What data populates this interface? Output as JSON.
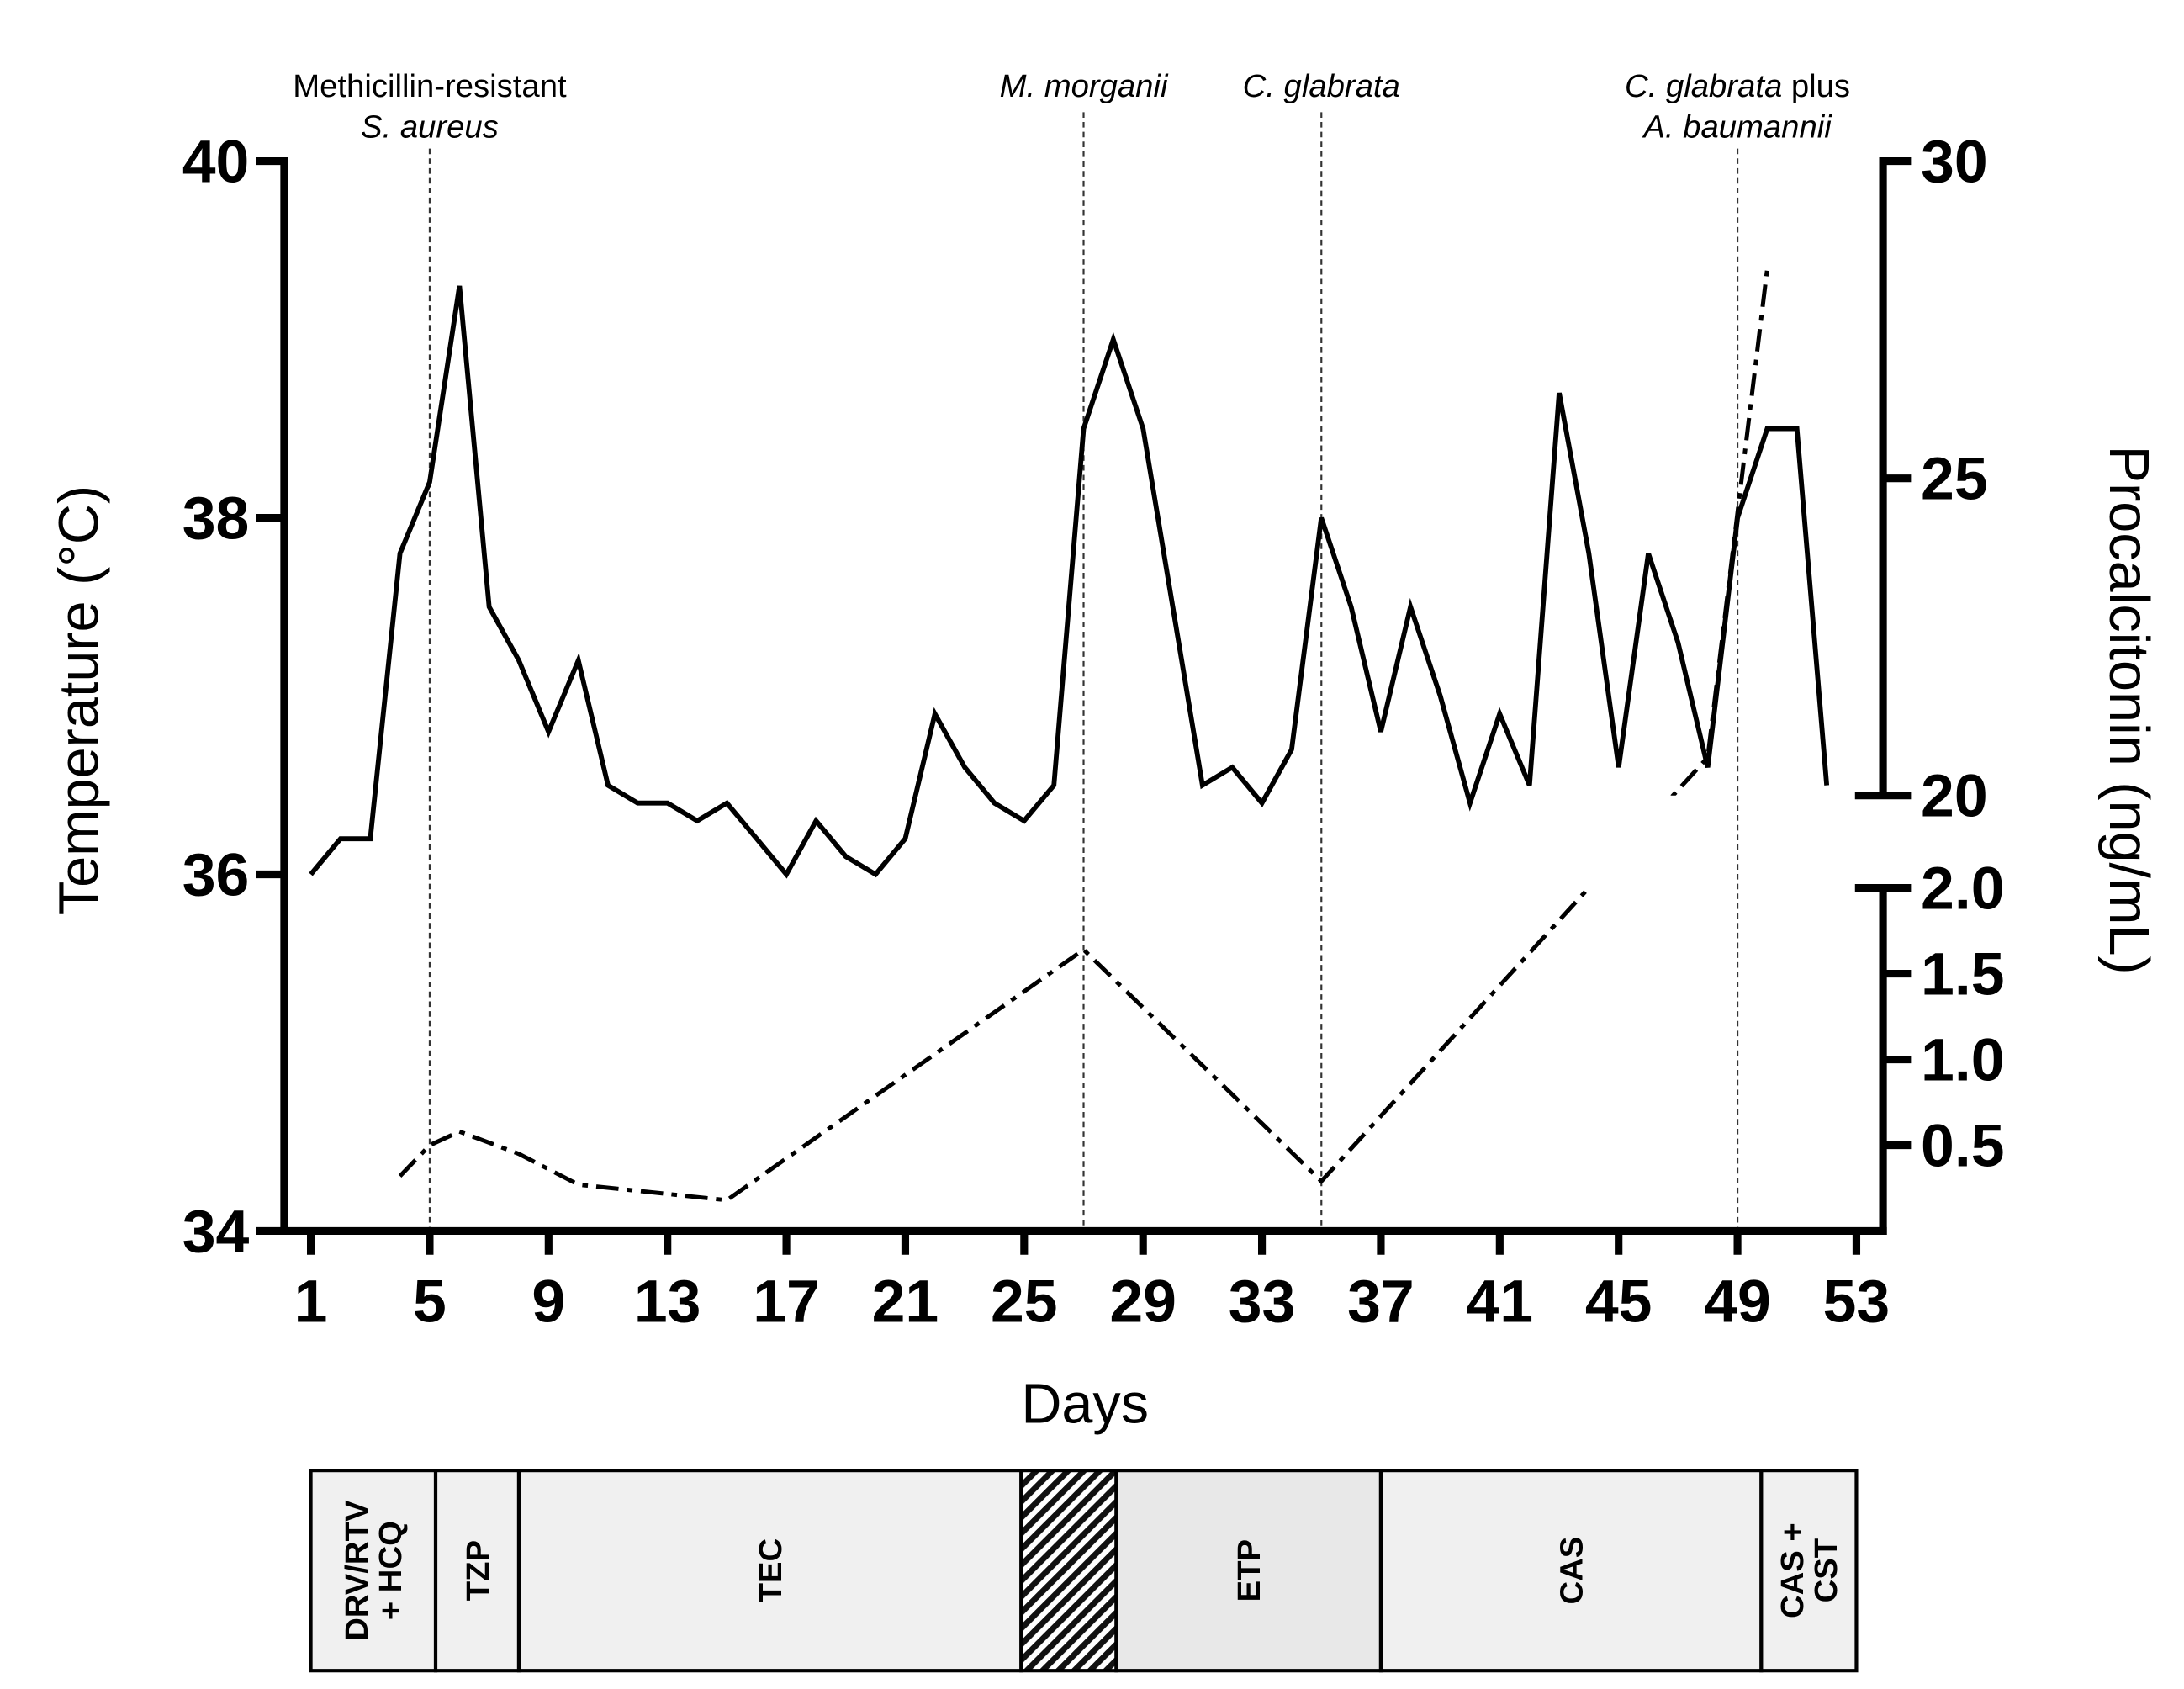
{
  "chart_data": {
    "type": "line",
    "xlabel": "Days",
    "ylabel": "Temperature (°C)",
    "y2label": "Procalcitonin (ng/mL)",
    "xlim": [
      1,
      53
    ],
    "x_ticks": [
      1,
      5,
      9,
      13,
      17,
      21,
      25,
      29,
      33,
      37,
      41,
      45,
      49,
      53
    ],
    "ylim": [
      34,
      40
    ],
    "y_ticks": [
      40,
      38,
      36,
      34
    ],
    "y2_broken_axis": true,
    "y2_segments": [
      {
        "range": [
          0,
          2.0
        ],
        "ticks": [
          "0.5",
          "1.0",
          "1.5",
          "2.0"
        ]
      },
      {
        "range": [
          20,
          30
        ],
        "ticks": [
          "20",
          "25",
          "30"
        ]
      }
    ],
    "grid": false,
    "legend": "none",
    "series": [
      {
        "right_axis": false,
        "dash_dot": false,
        "x": [
          1,
          2,
          3,
          4,
          5,
          6,
          7,
          8,
          9,
          10,
          11,
          12,
          13,
          14,
          15,
          16,
          17,
          18,
          19,
          20,
          21,
          22,
          23,
          24,
          25,
          26,
          27,
          28,
          29,
          30,
          31,
          32,
          33,
          34,
          35,
          36,
          37,
          38,
          39,
          40,
          41,
          42,
          43,
          44,
          45,
          46,
          47,
          48,
          49,
          50,
          51,
          52
        ],
        "values": [
          36.0,
          36.2,
          36.2,
          37.8,
          38.2,
          39.3,
          37.5,
          37.2,
          36.8,
          37.2,
          36.5,
          36.4,
          36.4,
          36.3,
          36.4,
          36.2,
          36.0,
          36.3,
          36.1,
          36.0,
          36.2,
          36.9,
          36.6,
          36.4,
          36.3,
          36.5,
          38.5,
          39.0,
          38.5,
          37.5,
          36.5,
          36.6,
          36.4,
          36.7,
          38.0,
          37.5,
          36.8,
          37.5,
          37.0,
          36.4,
          36.9,
          36.5,
          38.7,
          37.8,
          36.6,
          37.8,
          37.3,
          36.6,
          38.0,
          38.5,
          38.5,
          36.5
        ]
      },
      {
        "right_axis": true,
        "dash_dot": true,
        "x": [
          4,
          5,
          6,
          8,
          10,
          15,
          27,
          35,
          48,
          50
        ],
        "values": [
          0.32,
          0.5,
          0.58,
          0.45,
          0.27,
          0.18,
          1.64,
          0.29,
          20.6,
          28.3
        ]
      }
    ],
    "annotations": [
      {
        "day": 5,
        "lines": [
          [
            {
              "text": "Methicillin-resistant",
              "italic": false
            }
          ],
          [
            {
              "text": "S. aureus",
              "italic": true
            }
          ]
        ]
      },
      {
        "day": 27,
        "lines": [
          [
            {
              "text": "M. morganii",
              "italic": true
            }
          ]
        ]
      },
      {
        "day": 35,
        "lines": [
          [
            {
              "text": "C. glabrata",
              "italic": true
            }
          ]
        ]
      },
      {
        "day": 49,
        "lines": [
          [
            {
              "text": "C. glabrata",
              "italic": true
            },
            {
              "text": " plus",
              "italic": false
            }
          ],
          [
            {
              "text": "A. baumannii",
              "italic": true
            }
          ]
        ]
      }
    ],
    "treatment_bar": [
      {
        "lines": [
          "DRV/RTV",
          "+ HCQ"
        ],
        "start_day": 1,
        "end_day": 5.2,
        "fill": "#f0f0f0"
      },
      {
        "lines": [
          "TZP"
        ],
        "start_day": 5.2,
        "end_day": 8,
        "fill": "#f0f0f0"
      },
      {
        "lines": [
          "TEC"
        ],
        "start_day": 8,
        "end_day": 24.9,
        "fill": "#f0f0f0"
      },
      {
        "lines": [],
        "start_day": 24.9,
        "end_day": 28.1,
        "hatched": true
      },
      {
        "lines": [
          "ETP"
        ],
        "start_day": 28.1,
        "end_day": 37,
        "fill": "#e8e8e8"
      },
      {
        "lines": [
          "CAS"
        ],
        "start_day": 37,
        "end_day": 49.8,
        "fill": "#f0f0f0"
      },
      {
        "lines": [
          "CAS +",
          "CST"
        ],
        "start_day": 49.8,
        "end_day": 53,
        "fill": "#f0f0f0"
      }
    ],
    "colors": {
      "line": "#000000",
      "marker_line": "#333333",
      "hatch": "#111111"
    }
  }
}
